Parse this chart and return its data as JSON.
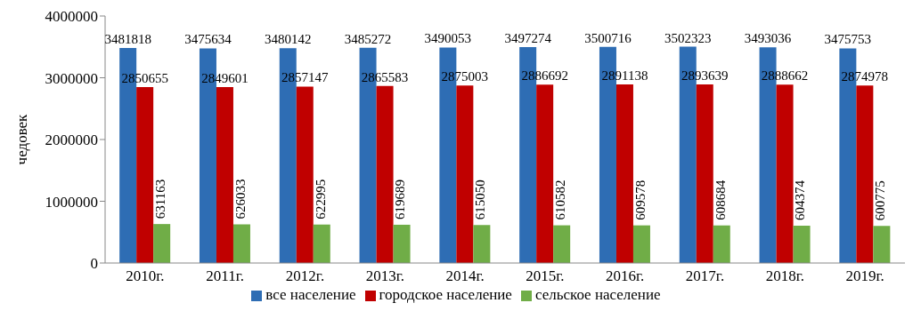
{
  "chart_data": {
    "type": "bar",
    "ylabel": "чедовек",
    "categories": [
      "2010г.",
      "2011г.",
      "2012г.",
      "2013г.",
      "2014г.",
      "2015г.",
      "2016г.",
      "2017г.",
      "2018г.",
      "2019г."
    ],
    "series": [
      {
        "name": "все население",
        "color": "#2e6db4",
        "values": [
          3481818,
          3475634,
          3480142,
          3485272,
          3490053,
          3497274,
          3500716,
          3502323,
          3493036,
          3475753
        ]
      },
      {
        "name": "городское население",
        "color": "#c00000",
        "values": [
          2850655,
          2849601,
          2857147,
          2865583,
          2875003,
          2886692,
          2891138,
          2893639,
          2888662,
          2874978
        ]
      },
      {
        "name": "сельское население",
        "color": "#70ad47",
        "values": [
          631163,
          626033,
          622995,
          619689,
          615050,
          610582,
          609578,
          608684,
          604374,
          600775
        ]
      }
    ],
    "ylim": [
      0,
      4000000
    ],
    "yticks": [
      0,
      1000000,
      2000000,
      3000000,
      4000000
    ],
    "data_labels": true,
    "legend": "bottom",
    "grid": false
  }
}
